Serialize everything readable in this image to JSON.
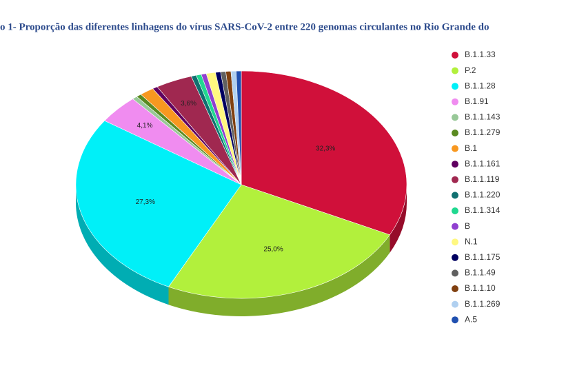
{
  "chart_data": {
    "type": "pie",
    "title": "o 1- Proporção das diferentes linhagens do vírus SARS-CoV-2 entre 220 genomas circulantes no Rio Grande do",
    "categories": [
      "B.1.1.33",
      "P.2",
      "B.1.1.28",
      "B.1.91",
      "B.1.1.143",
      "B.1.1.279",
      "B.1",
      "B.1.1.161",
      "B.1.1.119",
      "B.1.1.220",
      "B.1.1.314",
      "B",
      "N.1",
      "B.1.1.175",
      "B.1.1.49",
      "B.1.1.10",
      "B.1.1.269",
      "A.5"
    ],
    "values": [
      32.3,
      25.0,
      27.3,
      4.1,
      0.5,
      0.5,
      1.4,
      0.5,
      3.6,
      0.5,
      0.5,
      0.5,
      0.9,
      0.5,
      0.5,
      0.5,
      0.5,
      0.5
    ],
    "value_labels": [
      "32,3%",
      "25,0%",
      "27,3%",
      "4,1%",
      null,
      null,
      null,
      null,
      "3,6%",
      null,
      null,
      null,
      null,
      null,
      null,
      null,
      null,
      null
    ],
    "colors": [
      "#d0103a",
      "#b2f03c",
      "#00f0f8",
      "#f08cf0",
      "#98c898",
      "#5a8a20",
      "#f89820",
      "#600060",
      "#a02850",
      "#107070",
      "#20d890",
      "#9040d0",
      "#fff880",
      "#000060",
      "#606060",
      "#804010",
      "#b0d0f0",
      "#2050b0"
    ],
    "legend": "right"
  }
}
